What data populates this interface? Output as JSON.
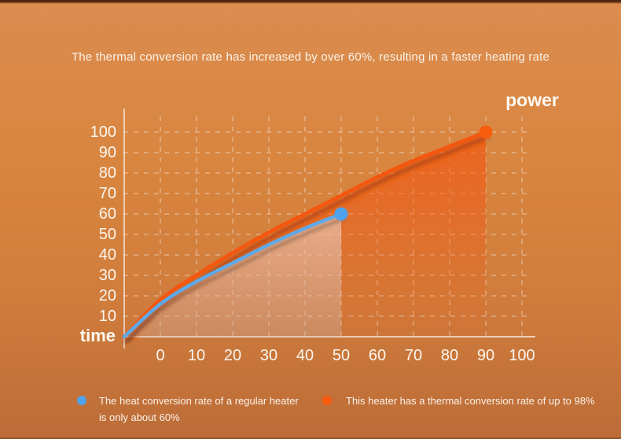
{
  "title": "The thermal conversion rate has increased by over 60%, resulting in a faster heating rate",
  "chart_data": {
    "type": "line",
    "x_label": "time",
    "y_label": "power",
    "x_ticks": [
      0,
      10,
      20,
      30,
      40,
      50,
      60,
      70,
      80,
      90,
      100
    ],
    "y_ticks": [
      100,
      90,
      80,
      70,
      60,
      50,
      40,
      30,
      20,
      10
    ],
    "x_range": [
      0,
      100
    ],
    "y_range": [
      0,
      100
    ],
    "grid": "dashed white, both directions",
    "note": "both curves start at the axis origin located one grid step (10 units) left of the 0 tick",
    "series": [
      {
        "name": "This heater (thermal conversion rate up to 98%)",
        "color": "#f4570f",
        "end_point": [
          90,
          100
        ],
        "points": [
          [
            -10,
            0
          ],
          [
            0,
            18
          ],
          [
            10,
            30
          ],
          [
            20,
            41
          ],
          [
            30,
            51
          ],
          [
            40,
            60
          ],
          [
            50,
            69
          ],
          [
            60,
            78
          ],
          [
            70,
            86
          ],
          [
            80,
            93
          ],
          [
            90,
            100
          ]
        ]
      },
      {
        "name": "Regular heater (heat conversion rate about 60%)",
        "color": "#5fa9e9",
        "end_point": [
          50,
          60
        ],
        "points": [
          [
            -10,
            0
          ],
          [
            0,
            16
          ],
          [
            10,
            27
          ],
          [
            20,
            36
          ],
          [
            30,
            45
          ],
          [
            40,
            53
          ],
          [
            50,
            60
          ]
        ]
      }
    ],
    "legend": [
      {
        "color": "#4fa2ec",
        "lines": [
          "The heat conversion rate of a regular heater",
          "is only about 60%"
        ]
      },
      {
        "color": "#f85a0d",
        "lines": [
          "This heater has a thermal conversion rate of up to 98%"
        ]
      }
    ]
  },
  "colors": {
    "background_top": "#db8c4f",
    "background_bottom": "#bc6c38",
    "text": "#fcf6ee",
    "grid": "#ffffff",
    "orange_curve": "#f4570f",
    "blue_curve": "#5fa9e9",
    "blue_area": "rgba(238,232,230,0.5)"
  }
}
